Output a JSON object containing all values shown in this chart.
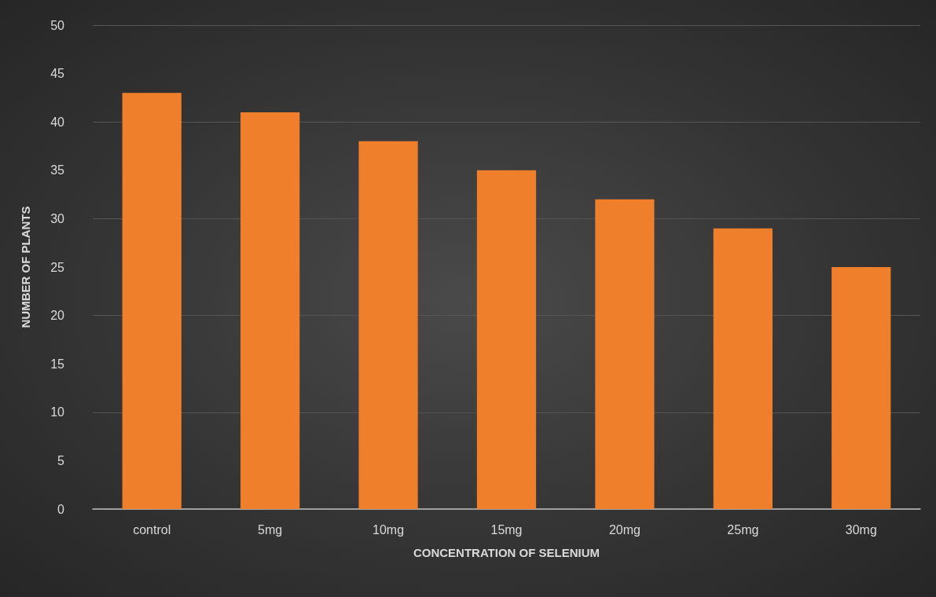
{
  "chart_data": {
    "type": "bar",
    "xlabel": "CONCENTRATION OF SELENIUM",
    "ylabel": "NUMBER OF PLANTS",
    "categories": [
      "control",
      "5mg",
      "10mg",
      "15mg",
      "20mg",
      "25mg",
      "30mg"
    ],
    "values": [
      43,
      41,
      38,
      35,
      32,
      29,
      25
    ],
    "color": "#f07f2c",
    "ylim": [
      0,
      50
    ],
    "yticks": [
      0,
      5,
      10,
      15,
      20,
      25,
      30,
      35,
      40,
      45,
      50
    ],
    "grid": "y"
  }
}
